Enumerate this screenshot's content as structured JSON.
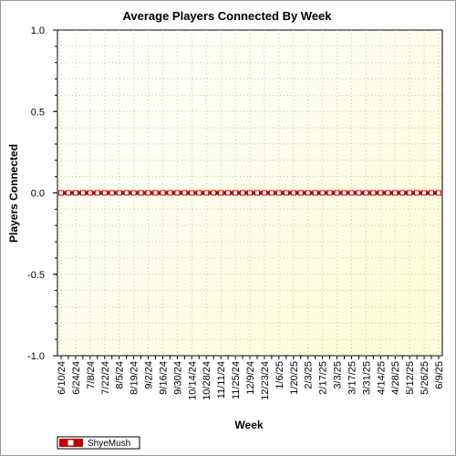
{
  "chart_data": {
    "type": "line",
    "title": "Average Players Connected By Week",
    "xlabel": "Week",
    "ylabel": "Players Connected",
    "ylim": [
      -1.0,
      1.0
    ],
    "yticks": [
      "1.0",
      "0.5",
      "0.0",
      "-0.5",
      "-1.0"
    ],
    "x": [
      "6/10/24",
      "6/17/24",
      "6/24/24",
      "7/1/24",
      "7/8/24",
      "7/15/24",
      "7/22/24",
      "7/29/24",
      "8/5/24",
      "8/12/24",
      "8/19/24",
      "8/26/24",
      "9/2/24",
      "9/9/24",
      "9/16/24",
      "9/23/24",
      "9/30/24",
      "10/7/24",
      "10/14/24",
      "10/21/24",
      "10/28/24",
      "11/4/24",
      "11/11/24",
      "11/18/24",
      "11/25/24",
      "12/2/24",
      "12/9/24",
      "12/16/24",
      "12/23/24",
      "12/30/24",
      "1/6/25",
      "1/13/25",
      "1/20/25",
      "1/27/25",
      "2/3/25",
      "2/10/25",
      "2/17/25",
      "2/24/25",
      "3/3/25",
      "3/10/25",
      "3/17/25",
      "3/24/25",
      "3/31/25",
      "4/7/25",
      "4/14/25",
      "4/21/25",
      "4/28/25",
      "5/5/25",
      "5/12/25",
      "5/19/25",
      "5/26/25",
      "6/2/25",
      "6/9/25"
    ],
    "x_tick_labels": [
      "6/10/24",
      "6/24/24",
      "7/8/24",
      "7/22/24",
      "8/5/24",
      "8/19/24",
      "9/2/24",
      "9/16/24",
      "9/30/24",
      "10/14/24",
      "10/28/24",
      "11/11/24",
      "11/25/24",
      "12/9/24",
      "12/23/24",
      "1/6/25",
      "1/20/25",
      "2/3/25",
      "2/17/25",
      "3/3/25",
      "3/17/25",
      "3/31/25",
      "4/14/25",
      "4/28/25",
      "5/12/25",
      "5/26/25",
      "6/9/25"
    ],
    "series": [
      {
        "name": "ShyeMush",
        "color": "#c00000",
        "values": [
          0,
          0,
          0,
          0,
          0,
          0,
          0,
          0,
          0,
          0,
          0,
          0,
          0,
          0,
          0,
          0,
          0,
          0,
          0,
          0,
          0,
          0,
          0,
          0,
          0,
          0,
          0,
          0,
          0,
          0,
          0,
          0,
          0,
          0,
          0,
          0,
          0,
          0,
          0,
          0,
          0,
          0,
          0,
          0,
          0,
          0,
          0,
          0,
          0,
          0,
          0,
          0,
          0
        ]
      }
    ],
    "grid": true,
    "legend_placement": "bottom-left",
    "plot_background": "#fffff0"
  }
}
